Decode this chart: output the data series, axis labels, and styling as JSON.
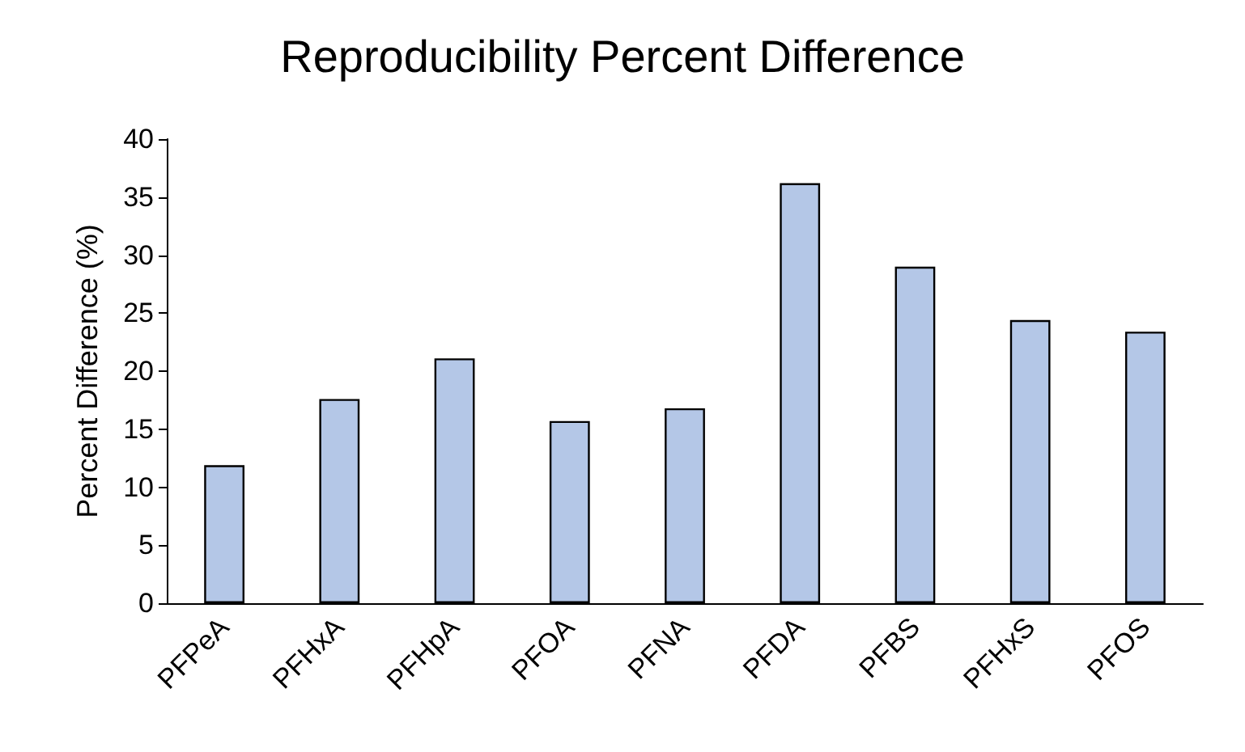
{
  "chart_data": {
    "type": "bar",
    "title": "Reproducibility Percent Difference",
    "ylabel": "Percent Difference (%)",
    "categories": [
      "PFPeA",
      "PFHxA",
      "PFHpA",
      "PFOA",
      "PFNA",
      "PFDA",
      "PFBS",
      "PFHxS",
      "PFOS"
    ],
    "values": [
      11.9,
      17.6,
      21.1,
      15.7,
      16.8,
      36.2,
      29.0,
      24.4,
      23.4
    ],
    "color": "#b4c7e7",
    "ylim": [
      0,
      40
    ],
    "yticks": [
      0,
      5,
      10,
      15,
      20,
      25,
      30,
      35,
      40
    ],
    "grid": false
  }
}
